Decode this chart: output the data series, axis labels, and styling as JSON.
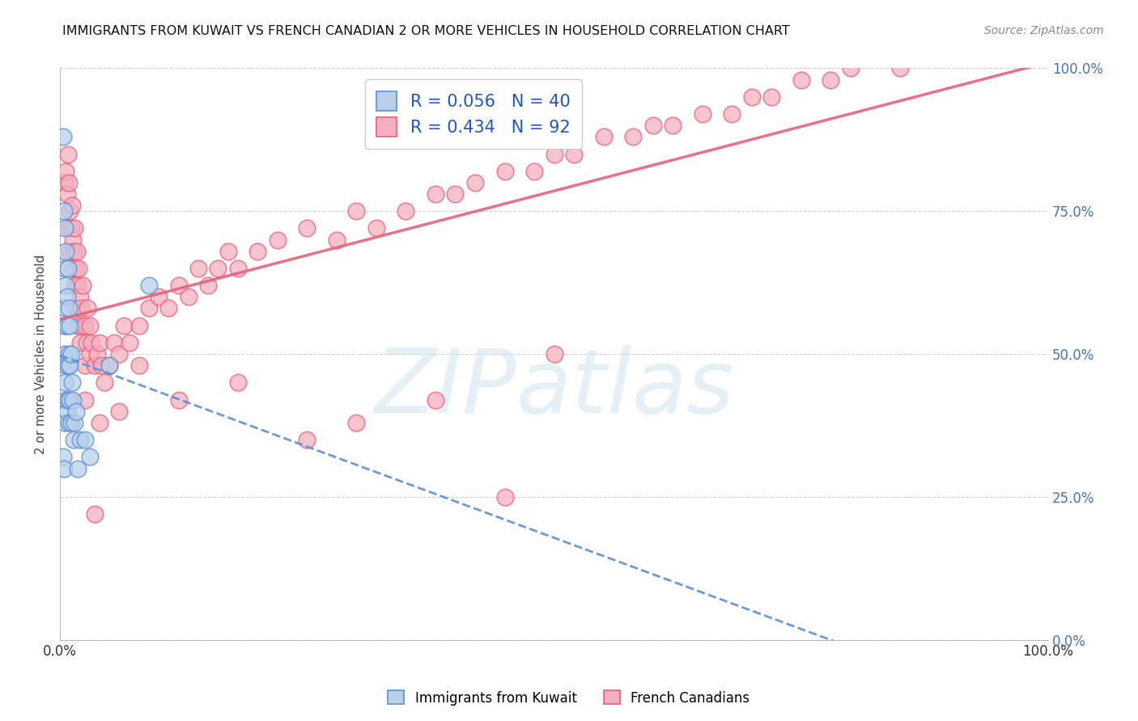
{
  "title": "IMMIGRANTS FROM KUWAIT VS FRENCH CANADIAN 2 OR MORE VEHICLES IN HOUSEHOLD CORRELATION CHART",
  "source": "Source: ZipAtlas.com",
  "ylabel": "2 or more Vehicles in Household",
  "watermark": "ZIPatlas",
  "legend_color1": "#b8d0ea",
  "legend_color2": "#f4b0c0",
  "scatter_color1": "#b8d0ea",
  "scatter_color2": "#f4b0c0",
  "trend_color1": "#5b8fd4",
  "trend_color2": "#e8607a",
  "R1": 0.056,
  "N1": 40,
  "R2": 0.434,
  "N2": 92,
  "ytick_labels": [
    "0.0%",
    "25.0%",
    "50.0%",
    "75.0%",
    "100.0%"
  ],
  "ytick_values": [
    0.0,
    0.25,
    0.5,
    0.75,
    1.0
  ],
  "xlim": [
    0.0,
    1.0
  ],
  "ylim": [
    0.0,
    1.0
  ],
  "blue_x": [
    0.003,
    0.003,
    0.004,
    0.004,
    0.004,
    0.005,
    0.005,
    0.005,
    0.005,
    0.005,
    0.005,
    0.006,
    0.006,
    0.006,
    0.006,
    0.007,
    0.007,
    0.007,
    0.008,
    0.008,
    0.008,
    0.009,
    0.009,
    0.009,
    0.01,
    0.01,
    0.01,
    0.011,
    0.011,
    0.012,
    0.013,
    0.014,
    0.015,
    0.016,
    0.018,
    0.02,
    0.025,
    0.03,
    0.05,
    0.09
  ],
  "blue_y": [
    0.88,
    0.32,
    0.75,
    0.55,
    0.3,
    0.72,
    0.65,
    0.58,
    0.5,
    0.45,
    0.38,
    0.68,
    0.62,
    0.48,
    0.42,
    0.6,
    0.55,
    0.4,
    0.65,
    0.48,
    0.42,
    0.58,
    0.5,
    0.38,
    0.55,
    0.48,
    0.42,
    0.5,
    0.38,
    0.45,
    0.42,
    0.35,
    0.38,
    0.4,
    0.3,
    0.35,
    0.35,
    0.32,
    0.48,
    0.62
  ],
  "pink_x": [
    0.005,
    0.006,
    0.007,
    0.008,
    0.008,
    0.009,
    0.01,
    0.01,
    0.011,
    0.012,
    0.013,
    0.013,
    0.014,
    0.015,
    0.015,
    0.016,
    0.016,
    0.017,
    0.018,
    0.018,
    0.019,
    0.02,
    0.02,
    0.021,
    0.022,
    0.023,
    0.025,
    0.025,
    0.027,
    0.028,
    0.03,
    0.03,
    0.032,
    0.035,
    0.038,
    0.04,
    0.042,
    0.045,
    0.05,
    0.055,
    0.06,
    0.065,
    0.07,
    0.08,
    0.09,
    0.1,
    0.11,
    0.12,
    0.13,
    0.14,
    0.15,
    0.16,
    0.17,
    0.18,
    0.2,
    0.22,
    0.25,
    0.28,
    0.3,
    0.32,
    0.35,
    0.38,
    0.4,
    0.42,
    0.45,
    0.48,
    0.5,
    0.52,
    0.55,
    0.58,
    0.6,
    0.62,
    0.65,
    0.68,
    0.7,
    0.72,
    0.75,
    0.78,
    0.8,
    0.85,
    0.3,
    0.38,
    0.45,
    0.18,
    0.25,
    0.12,
    0.08,
    0.06,
    0.04,
    0.025,
    0.035,
    0.5
  ],
  "pink_y": [
    0.8,
    0.82,
    0.78,
    0.85,
    0.72,
    0.8,
    0.75,
    0.68,
    0.72,
    0.76,
    0.7,
    0.65,
    0.68,
    0.72,
    0.62,
    0.65,
    0.58,
    0.68,
    0.62,
    0.55,
    0.65,
    0.6,
    0.52,
    0.58,
    0.55,
    0.62,
    0.55,
    0.48,
    0.52,
    0.58,
    0.55,
    0.5,
    0.52,
    0.48,
    0.5,
    0.52,
    0.48,
    0.45,
    0.48,
    0.52,
    0.5,
    0.55,
    0.52,
    0.55,
    0.58,
    0.6,
    0.58,
    0.62,
    0.6,
    0.65,
    0.62,
    0.65,
    0.68,
    0.65,
    0.68,
    0.7,
    0.72,
    0.7,
    0.75,
    0.72,
    0.75,
    0.78,
    0.78,
    0.8,
    0.82,
    0.82,
    0.85,
    0.85,
    0.88,
    0.88,
    0.9,
    0.9,
    0.92,
    0.92,
    0.95,
    0.95,
    0.98,
    0.98,
    1.0,
    1.0,
    0.38,
    0.42,
    0.25,
    0.45,
    0.35,
    0.42,
    0.48,
    0.4,
    0.38,
    0.42,
    0.22,
    0.5
  ]
}
